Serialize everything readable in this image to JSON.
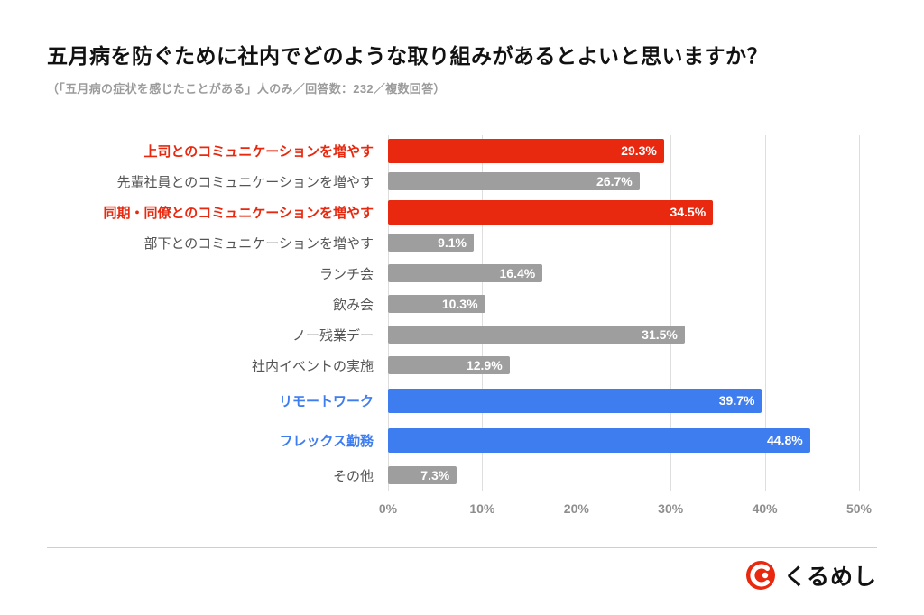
{
  "header": {
    "title": "五月病を防ぐために社内でどのような取り組みがあるとよいと思いますか？",
    "subtitle": "（「五月病の症状を感じたことがある」人のみ／回答数：232／複数回答）"
  },
  "chart_data": {
    "type": "bar",
    "orientation": "horizontal",
    "title": "五月病を防ぐために社内でどのような取り組みがあるとよいと思いますか？",
    "xlabel": "",
    "ylabel": "",
    "xlim": [
      0,
      50
    ],
    "x_ticks": [
      "0%",
      "10%",
      "20%",
      "30%",
      "40%",
      "50%"
    ],
    "grid": true,
    "colors": {
      "red": "#e8290f",
      "blue": "#3e7df0",
      "gray": "#9e9e9e"
    },
    "categories": [
      "上司とのコミュニケーションを増やす",
      "先輩社員とのコミュニケーションを増やす",
      "同期・同僚とのコミュニケーションを増やす",
      "部下とのコミュニケーションを増やす",
      "ランチ会",
      "飲み会",
      "ノー残業デー",
      "社内イベントの実施",
      "リモートワーク",
      "フレックス勤務",
      "その他"
    ],
    "values": [
      29.3,
      26.7,
      34.5,
      9.1,
      16.4,
      10.3,
      31.5,
      12.9,
      39.7,
      44.8,
      7.3
    ],
    "bars": [
      {
        "label": "上司とのコミュニケーションを増やす",
        "value": 29.3,
        "display": "29.3%",
        "color": "red"
      },
      {
        "label": "先輩社員とのコミュニケーションを増やす",
        "value": 26.7,
        "display": "26.7%",
        "color": "gray"
      },
      {
        "label": "同期・同僚とのコミュニケーションを増やす",
        "value": 34.5,
        "display": "34.5%",
        "color": "red"
      },
      {
        "label": "部下とのコミュニケーションを増やす",
        "value": 9.1,
        "display": "9.1%",
        "color": "gray"
      },
      {
        "label": "ランチ会",
        "value": 16.4,
        "display": "16.4%",
        "color": "gray"
      },
      {
        "label": "飲み会",
        "value": 10.3,
        "display": "10.3%",
        "color": "gray"
      },
      {
        "label": "ノー残業デー",
        "value": 31.5,
        "display": "31.5%",
        "color": "gray"
      },
      {
        "label": "社内イベントの実施",
        "value": 12.9,
        "display": "12.9%",
        "color": "gray"
      },
      {
        "label": "リモートワーク",
        "value": 39.7,
        "display": "39.7%",
        "color": "blue"
      },
      {
        "label": "フレックス勤務",
        "value": 44.8,
        "display": "44.8%",
        "color": "blue"
      },
      {
        "label": "その他",
        "value": 7.3,
        "display": "7.3%",
        "color": "gray"
      }
    ]
  },
  "footer": {
    "brand": "くるめし",
    "logo_icon": "kurumeshi-logo-icon",
    "brand_color": "#e8290f"
  }
}
